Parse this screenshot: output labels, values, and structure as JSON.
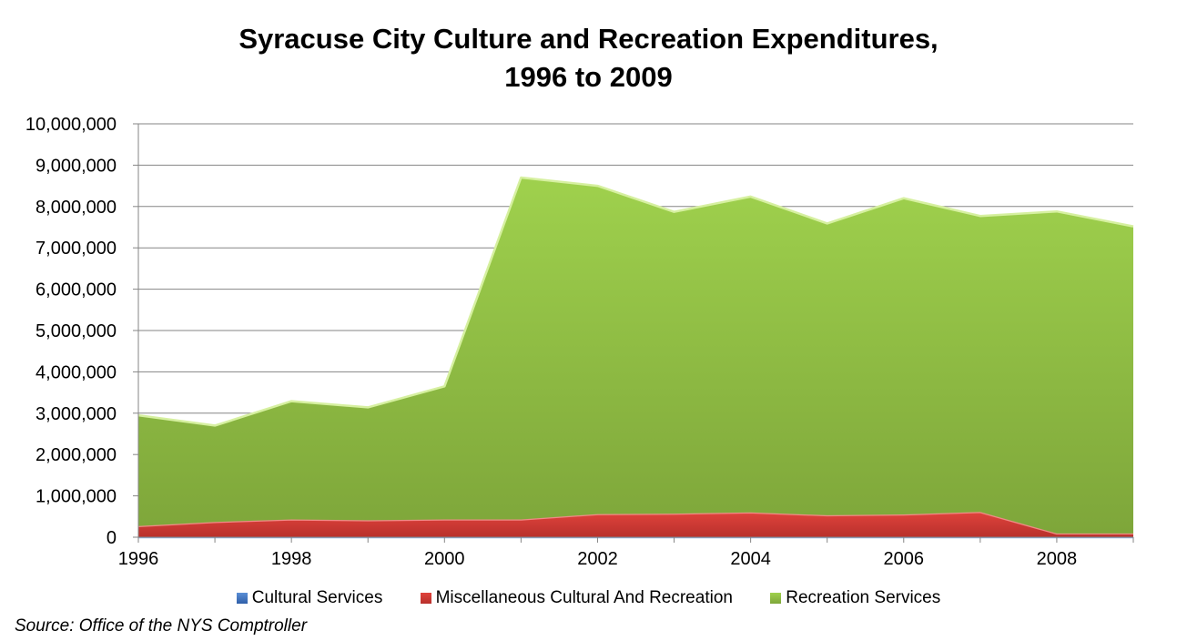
{
  "chart_data": {
    "type": "area",
    "stacked": true,
    "title_lines": [
      "Syracuse City Culture and Recreation Expenditures,",
      "1996 to 2009"
    ],
    "xlabel": "",
    "ylabel": "",
    "x": [
      1996,
      1997,
      1998,
      1999,
      2000,
      2001,
      2002,
      2003,
      2004,
      2005,
      2006,
      2007,
      2008,
      2009
    ],
    "xticks": [
      "1996",
      "1998",
      "2000",
      "2002",
      "2004",
      "2006",
      "2008"
    ],
    "ylim": [
      0,
      10000000
    ],
    "yticks": [
      "0",
      "1,000,000",
      "2,000,000",
      "3,000,000",
      "4,000,000",
      "5,000,000",
      "6,000,000",
      "7,000,000",
      "8,000,000",
      "9,000,000",
      "10,000,000"
    ],
    "grid": true,
    "legend_position": "bottom",
    "series": [
      {
        "name": "Cultural Services",
        "color": "#4a7ebb",
        "values": [
          0,
          0,
          0,
          0,
          0,
          0,
          0,
          0,
          0,
          0,
          0,
          0,
          0,
          0
        ]
      },
      {
        "name": "Miscellaneous Cultural And Recreation",
        "color": "#c0504d",
        "values": [
          270000,
          370000,
          430000,
          410000,
          430000,
          430000,
          560000,
          570000,
          600000,
          530000,
          550000,
          610000,
          90000,
          90000
        ]
      },
      {
        "name": "Recreation Services",
        "color": "#9bbb59",
        "values": [
          2680000,
          2330000,
          2860000,
          2730000,
          3220000,
          8270000,
          7940000,
          7300000,
          7640000,
          7060000,
          7650000,
          7160000,
          7790000,
          7430000
        ]
      }
    ]
  },
  "source": "Source:  Office of the NYS Comptroller"
}
